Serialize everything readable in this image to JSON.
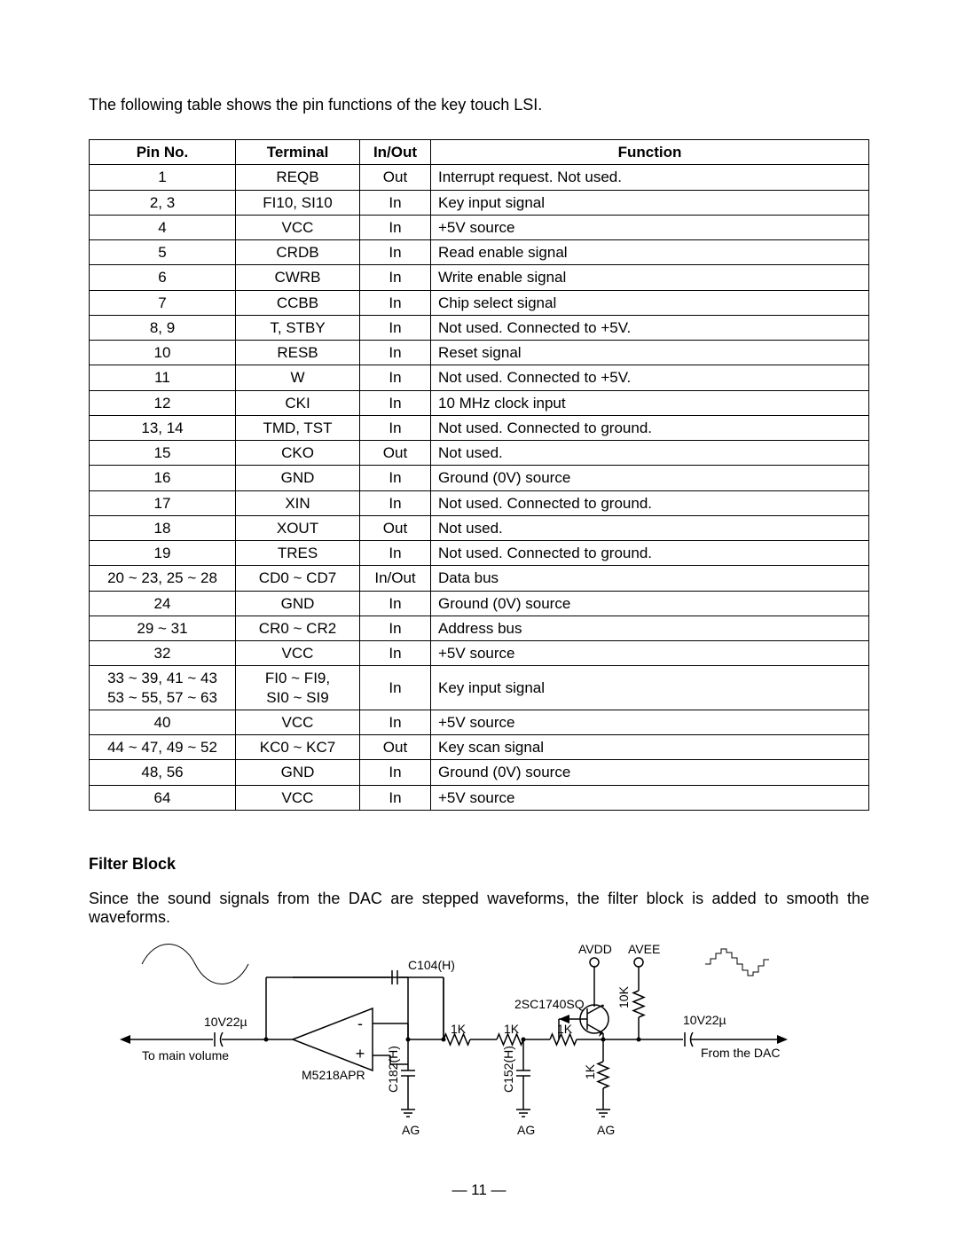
{
  "intro_text": "The following table shows the pin functions of the key touch LSI.",
  "table": {
    "headers": [
      "Pin No.",
      "Terminal",
      "In/Out",
      "Function"
    ],
    "rows": [
      [
        "1",
        "REQB",
        "Out",
        "Interrupt request. Not used."
      ],
      [
        "2, 3",
        "FI10, SI10",
        "In",
        "Key input signal"
      ],
      [
        "4",
        "VCC",
        "In",
        "+5V source"
      ],
      [
        "5",
        "CRDB",
        "In",
        "Read enable signal"
      ],
      [
        "6",
        "CWRB",
        "In",
        "Write enable signal"
      ],
      [
        "7",
        "CCBB",
        "In",
        "Chip select signal"
      ],
      [
        "8, 9",
        "T, STBY",
        "In",
        "Not used. Connected to +5V."
      ],
      [
        "10",
        "RESB",
        "In",
        "Reset signal"
      ],
      [
        "11",
        "W",
        "In",
        "Not used. Connected to +5V."
      ],
      [
        "12",
        "CKI",
        "In",
        "10 MHz clock input"
      ],
      [
        "13, 14",
        "TMD, TST",
        "In",
        "Not used. Connected to ground."
      ],
      [
        "15",
        "CKO",
        "Out",
        "Not used."
      ],
      [
        "16",
        "GND",
        "In",
        "Ground (0V) source"
      ],
      [
        "17",
        "XIN",
        "In",
        "Not used. Connected to ground."
      ],
      [
        "18",
        "XOUT",
        "Out",
        "Not used."
      ],
      [
        "19",
        "TRES",
        "In",
        "Not used. Connected to ground."
      ],
      [
        "20 ~ 23, 25 ~ 28",
        "CD0 ~ CD7",
        "In/Out",
        "Data bus"
      ],
      [
        "24",
        "GND",
        "In",
        "Ground (0V) source"
      ],
      [
        "29 ~ 31",
        "CR0 ~ CR2",
        "In",
        "Address bus"
      ],
      [
        "32",
        "VCC",
        "In",
        "+5V source"
      ],
      [
        "33 ~ 39, 41 ~ 43\n53 ~ 55, 57 ~ 63",
        "FI0 ~ FI9,\nSI0 ~ SI9",
        "In",
        "Key input signal"
      ],
      [
        "40",
        "VCC",
        "In",
        "+5V source"
      ],
      [
        "44 ~ 47, 49 ~ 52",
        "KC0 ~ KC7",
        "Out",
        "Key scan signal"
      ],
      [
        "48, 56",
        "GND",
        "In",
        "Ground (0V) source"
      ],
      [
        "64",
        "VCC",
        "In",
        "+5V source"
      ]
    ]
  },
  "filter_heading": "Filter Block",
  "filter_text": "Since the sound signals from the DAC are stepped waveforms, the filter block is added to smooth the waveforms.",
  "diagram": {
    "labels": {
      "from_dac": "From the DAC",
      "to_main": "To main volume",
      "avdd": "AVDD",
      "avee": "AVEE",
      "cap_10v22_left": "10V22µ",
      "cap_10v22_right": "10V22µ",
      "tran": "2SC1740SQ",
      "r10k": "10K",
      "r1k_a": "1K",
      "r1k_b": "1K",
      "r1k_c": "1K",
      "r1k_d": "1K",
      "c104": "C104(H)",
      "c182": "C182(H)",
      "c152": "C152(H)",
      "ag1": "AG",
      "ag2": "AG",
      "ag3": "AG",
      "opamp": "M5218APR",
      "minus": "-",
      "plus": "+"
    },
    "style": {
      "stroke": "#000000",
      "stroke_width": 1.5,
      "font_size_small": 14,
      "font_size_med": 15
    }
  },
  "page_number": "— 11 —"
}
